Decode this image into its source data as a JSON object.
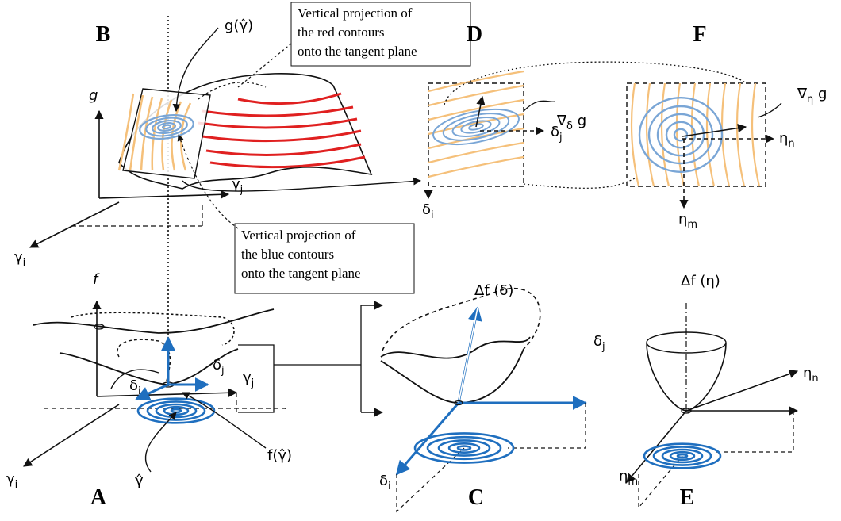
{
  "panel_labels": [
    "B",
    "D",
    "F",
    "A",
    "C",
    "E"
  ],
  "notes": [
    [
      "Vertical projection of",
      "the red contours",
      "onto the tangent plane"
    ],
    [
      "Vertical projection of",
      "the blue contours",
      "onto the tangent plane"
    ]
  ],
  "labels": [
    {
      "symbol": "g(γ̂)"
    },
    {
      "symbol": "g"
    },
    {
      "symbol": "γ",
      "subscript": "j"
    },
    {
      "symbol": "γ",
      "subscript": "i"
    },
    {
      "symbol": "f"
    },
    {
      "symbol": "δ",
      "subscript": "j"
    },
    {
      "symbol": "δ",
      "subscript": "i"
    },
    {
      "symbol": "γ",
      "subscript": "j"
    },
    {
      "symbol": "γ",
      "subscript": "i"
    },
    {
      "symbol": "f(γ̂)"
    },
    {
      "symbol": "γ̂"
    },
    {
      "symbol": "∇",
      "subscript": "δ",
      "suffix": " g"
    },
    {
      "symbol": "δ",
      "subscript": "j"
    },
    {
      "symbol": "δ",
      "subscript": "i"
    },
    {
      "symbol": "∇",
      "subscript": "η",
      "suffix": " g"
    },
    {
      "symbol": "η",
      "subscript": "n"
    },
    {
      "symbol": "η",
      "subscript": "m"
    },
    {
      "symbol": "Δf (δ)"
    },
    {
      "symbol": "δ",
      "subscript": "j"
    },
    {
      "symbol": "δ",
      "subscript": "i"
    },
    {
      "symbol": "Δf (η)"
    },
    {
      "symbol": "η",
      "subscript": "n"
    },
    {
      "symbol": "η",
      "subscript": "m"
    }
  ]
}
